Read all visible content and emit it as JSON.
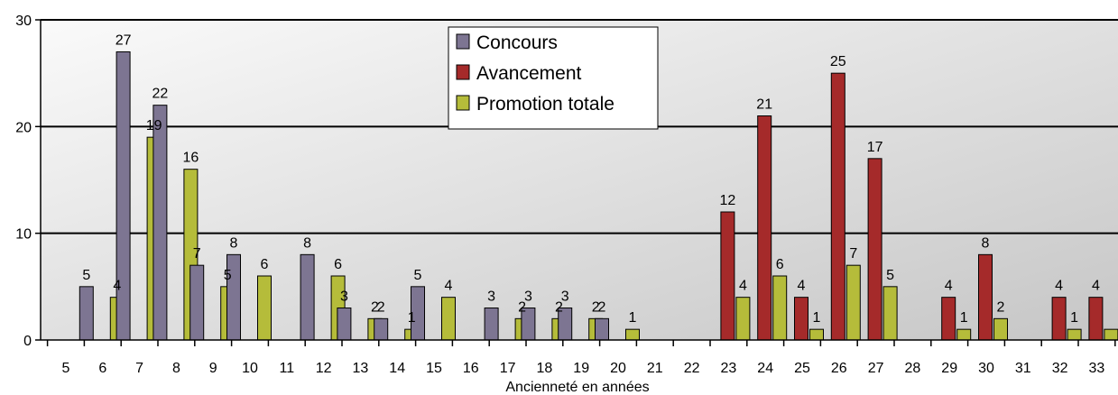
{
  "chart_data": {
    "type": "bar",
    "xlabel": "Ancienneté en années",
    "ylabel": "",
    "ylim": [
      0,
      30
    ],
    "yticks": [
      0,
      10,
      20,
      30
    ],
    "grid": true,
    "legend_position": "top-center",
    "categories": [
      "5",
      "6",
      "7",
      "8",
      "9",
      "10",
      "11",
      "12",
      "13",
      "14",
      "15",
      "16",
      "17",
      "18",
      "19",
      "20",
      "21",
      "22",
      "23",
      "24",
      "25",
      "26",
      "27",
      "28",
      "29",
      "30",
      "31",
      "32",
      "33"
    ],
    "series": [
      {
        "name": "Concours",
        "color": "#7d7592",
        "values": [
          null,
          5,
          27,
          22,
          7,
          8,
          null,
          8,
          3,
          2,
          5,
          null,
          3,
          3,
          3,
          2,
          null,
          null,
          null,
          null,
          null,
          null,
          null,
          null,
          null,
          null,
          null,
          null,
          null
        ],
        "labels": [
          "",
          "5",
          "27",
          "22",
          "7",
          "8",
          "",
          "8",
          "3",
          "2",
          "5",
          "",
          "3",
          "3",
          "3",
          "2",
          "",
          "",
          "",
          "",
          "",
          "",
          "",
          "",
          "",
          "",
          "",
          "",
          ""
        ]
      },
      {
        "name": "Avancement",
        "color": "#a52a2a",
        "values": [
          null,
          null,
          null,
          null,
          null,
          null,
          null,
          null,
          null,
          null,
          null,
          null,
          null,
          null,
          null,
          null,
          null,
          null,
          12,
          21,
          4,
          25,
          17,
          null,
          4,
          8,
          null,
          4,
          4
        ],
        "labels": [
          "",
          "",
          "",
          "",
          "",
          "",
          "",
          "",
          "",
          "",
          "",
          "",
          "",
          "",
          "",
          "",
          "",
          "",
          "12",
          "21",
          "4",
          "25",
          "17",
          "",
          "4",
          "8",
          "",
          "4",
          "4"
        ]
      },
      {
        "name": "Promotion totale",
        "color": "#b5bc3a",
        "values": [
          null,
          4,
          19,
          16,
          5,
          6,
          null,
          6,
          2,
          1,
          4,
          null,
          2,
          2,
          2,
          1,
          null,
          null,
          4,
          6,
          1,
          7,
          5,
          null,
          1,
          2,
          null,
          1,
          1
        ],
        "labels": [
          "",
          "4",
          "19",
          "16",
          "5",
          "6",
          "",
          "6",
          "2",
          "1",
          "4",
          "",
          "2",
          "2",
          "2",
          "1",
          "",
          "",
          "4",
          "6",
          "1",
          "7",
          "5",
          "",
          "1",
          "2",
          "",
          "1",
          ""
        ]
      }
    ]
  }
}
